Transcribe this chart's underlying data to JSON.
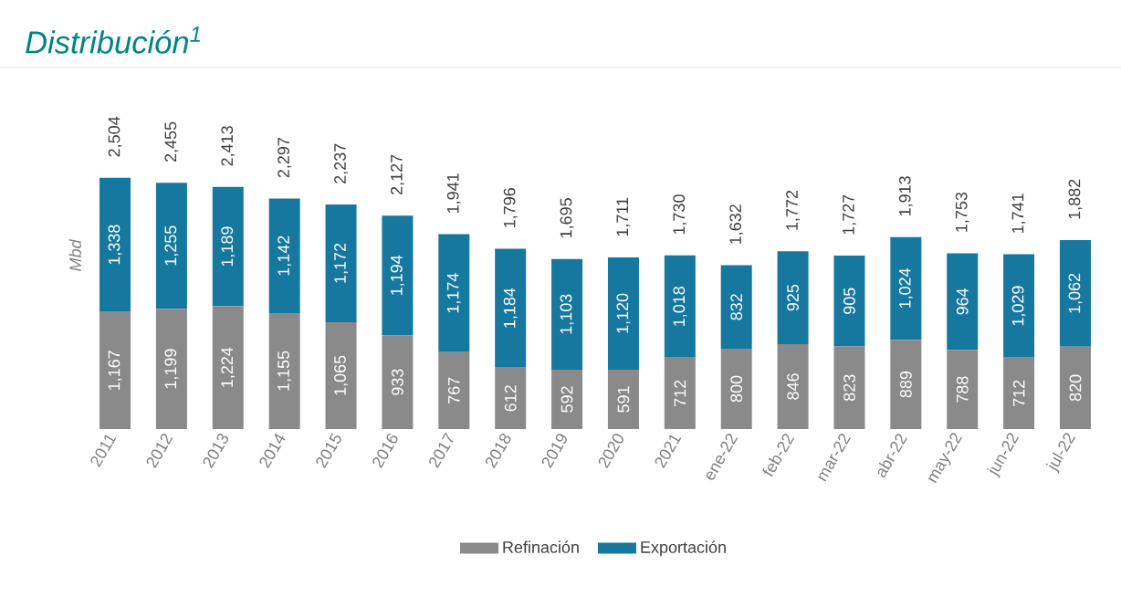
{
  "chart_data": {
    "type": "bar",
    "stacked": true,
    "title": "Distribución$^{1}$",
    "ylabel": "Mbd",
    "legend": "bottom",
    "categories": [
      "2011",
      "2012",
      "2013",
      "2014",
      "2015",
      "2016",
      "2017",
      "2018",
      "2019",
      "2020",
      "2021",
      "ene-22",
      "feb-22",
      "mar-22",
      "abr-22",
      "may-22",
      "jun-22",
      "jul-22"
    ],
    "series": [
      {
        "name": "Refinación",
        "color": "#8a8a8a",
        "values": [
          1167,
          1199,
          1224,
          1155,
          1065,
          933,
          767,
          612,
          592,
          591,
          712,
          800,
          846,
          823,
          889,
          788,
          712,
          820
        ],
        "value_labels": [
          "1,167",
          "1,199",
          "1,224",
          "1,155",
          "1,065",
          "933",
          "767",
          "612",
          "592",
          "591",
          "712",
          "800",
          "846",
          "823",
          "889",
          "788",
          "712",
          "820"
        ]
      },
      {
        "name": "Exportación",
        "color": "#16789e",
        "values": [
          1338,
          1255,
          1189,
          1142,
          1172,
          1194,
          1174,
          1184,
          1103,
          1120,
          1018,
          832,
          925,
          905,
          1024,
          964,
          1029,
          1062
        ],
        "value_labels": [
          "1,338",
          "1,255",
          "1,189",
          "1,142",
          "1,172",
          "1,194",
          "1,174",
          "1,184",
          "1,103",
          "1,120",
          "1,018",
          "832",
          "925",
          "905",
          "1,024",
          "964",
          "1,029",
          "1,062"
        ]
      }
    ],
    "totals": [
      "2,504",
      "2,455",
      "2,413",
      "2,297",
      "2,237",
      "2,127",
      "1,941",
      "1,796",
      "1,695",
      "1,711",
      "1,730",
      "1,632",
      "1,772",
      "1,727",
      "1,913",
      "1,753",
      "1,741",
      "1,882"
    ]
  }
}
